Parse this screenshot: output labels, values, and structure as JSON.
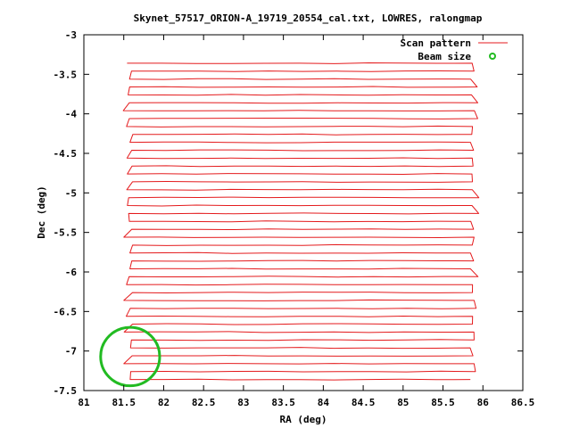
{
  "chart_data": {
    "type": "line",
    "title": "Skynet_57517_ORION-A_19719_20554_cal.txt, LOWRES, ralongmap",
    "xlabel": "RA (deg)",
    "ylabel": "Dec (deg)",
    "xlim": [
      81,
      86.5
    ],
    "ylim": [
      -7.5,
      -3
    ],
    "x_ticks": [
      "81",
      "81.5",
      "82",
      "82.5",
      "83",
      "83.5",
      "84",
      "84.5",
      "85",
      "85.5",
      "86",
      "86.5"
    ],
    "y_ticks": [
      "-3",
      "-3.5",
      "-4",
      "-4.5",
      "-5",
      "-5.5",
      "-6",
      "-6.5",
      "-7",
      "-7.5"
    ],
    "grid": false,
    "legend_position": "top-right",
    "legend": [
      {
        "label": "Scan pattern",
        "color": "#e41a1c"
      },
      {
        "label": "Beam size",
        "color": "#22bb22"
      }
    ],
    "scan": {
      "name": "Scan pattern",
      "color": "#e41a1c",
      "ra_min": 81.65,
      "ra_max": 85.8,
      "dec_start": -3.36,
      "dec_end": -7.42,
      "leg_spacing": 0.1,
      "leg_count": 41
    },
    "beam": {
      "name": "Beam size",
      "color": "#22bb22",
      "center_ra": 81.58,
      "center_dec": -7.07,
      "radius_deg": 0.37
    }
  }
}
